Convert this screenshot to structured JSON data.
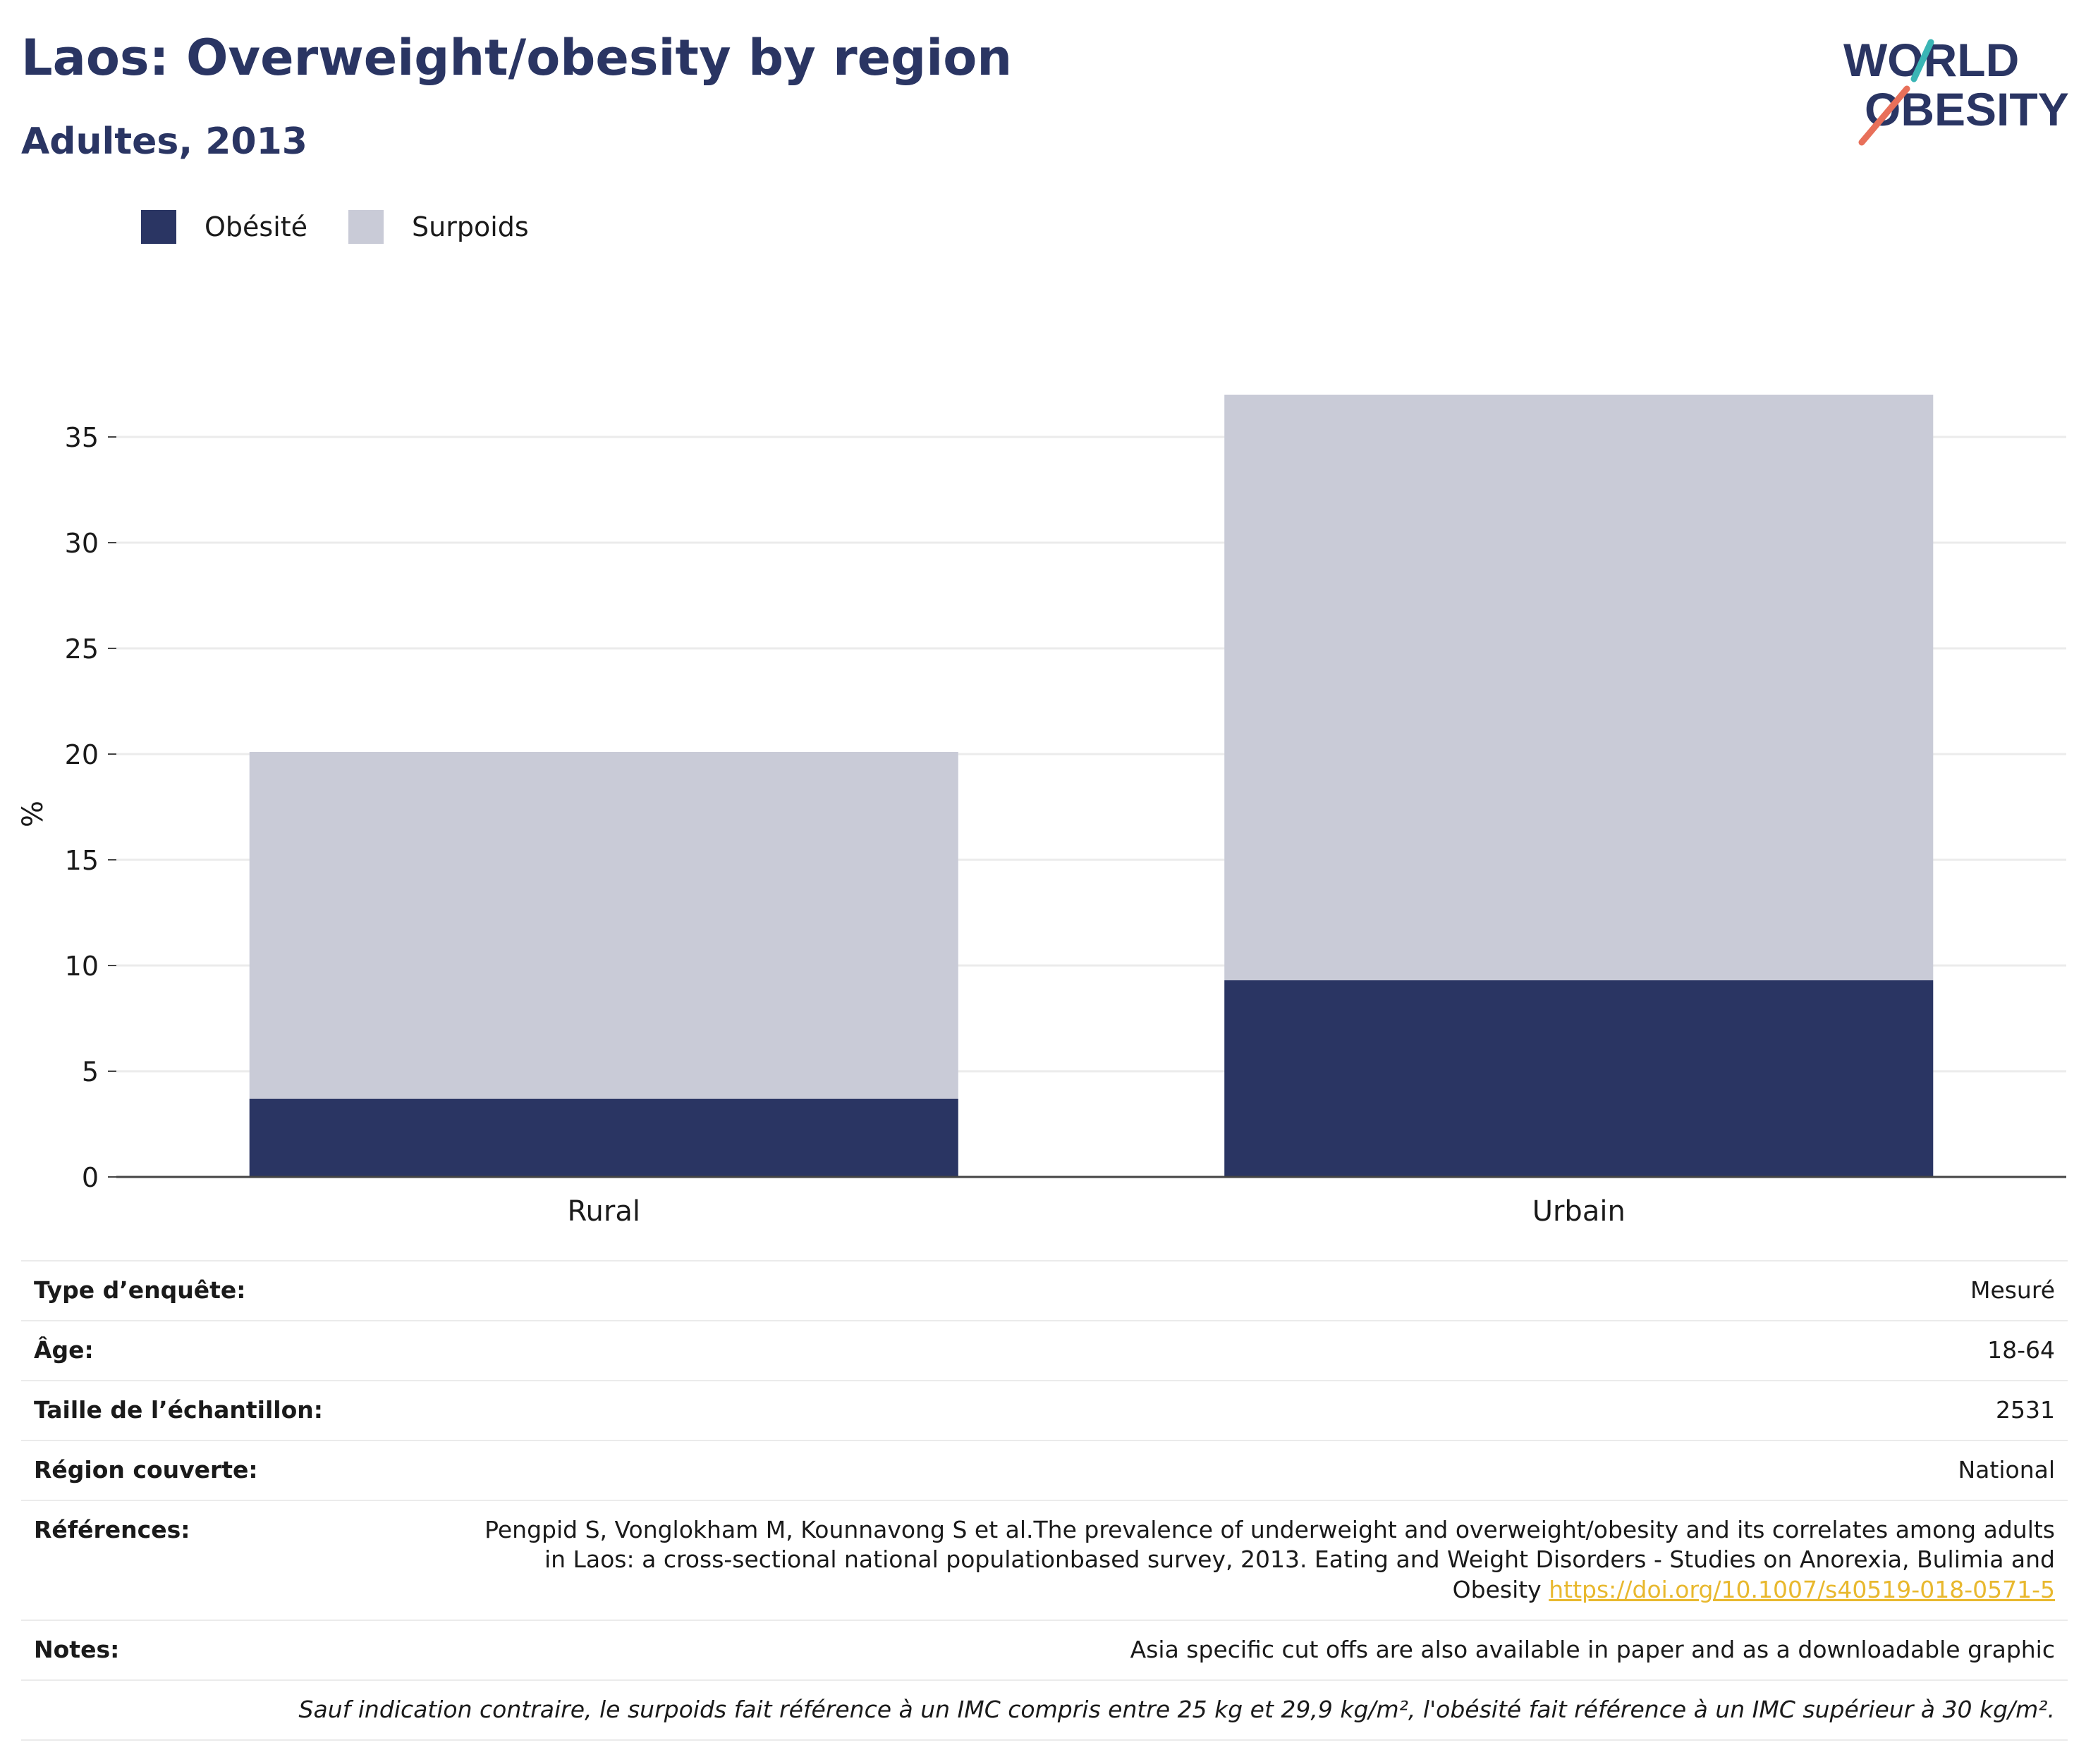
{
  "header": {
    "title": "Laos: Overweight/obesity by region",
    "subtitle": "Adultes, 2013",
    "logo_line1": "WORLD",
    "logo_line2": "OBESITY"
  },
  "colors": {
    "obesity": "#2a3563",
    "overweight": "#c9cbd7",
    "axis_line": "#444444",
    "grid": "#ebebeb",
    "logo_teal": "#3ab5b5",
    "logo_coral": "#e8705a"
  },
  "chart_data": {
    "type": "bar",
    "stacked": true,
    "categories": [
      "Rural",
      "Urbain"
    ],
    "series": [
      {
        "name": "Obésité",
        "values": [
          3.7,
          9.3
        ]
      },
      {
        "name": "Surpoids",
        "values": [
          16.4,
          27.7
        ]
      }
    ],
    "ylabel": "%",
    "ylim": [
      0,
      37
    ],
    "yticks": [
      0,
      5,
      10,
      15,
      20,
      25,
      30,
      35
    ],
    "grid": true,
    "legend_position": "top-left"
  },
  "details": {
    "rows": [
      {
        "label": "Type d’enquête:",
        "value": "Mesuré"
      },
      {
        "label": "Âge:",
        "value": "18-64"
      },
      {
        "label": "Taille de l’échantillon:",
        "value": "2531"
      },
      {
        "label": "Région couverte:",
        "value": "National"
      }
    ],
    "references_label": "Références:",
    "references_text": "Pengpid S, Vonglokham M, Kounnavong S et al.The prevalence of underweight and overweight/obesity and its correlates among adults in Laos: a cross-sectional national populationbased survey, 2013. Eating and Weight Disorders - Studies on Anorexia, Bulimia and Obesity",
    "references_link": "https://doi.org/10.1007/s40519-018-0571-5",
    "notes_label": "Notes:",
    "notes_value": "Asia specific cut offs are also available in paper and as a downloadable graphic",
    "footnote": "Sauf indication contraire, le surpoids fait référence à un IMC compris entre 25 kg et 29,9 kg/m², l'obésité fait référence à un IMC supérieur à 30 kg/m²."
  }
}
